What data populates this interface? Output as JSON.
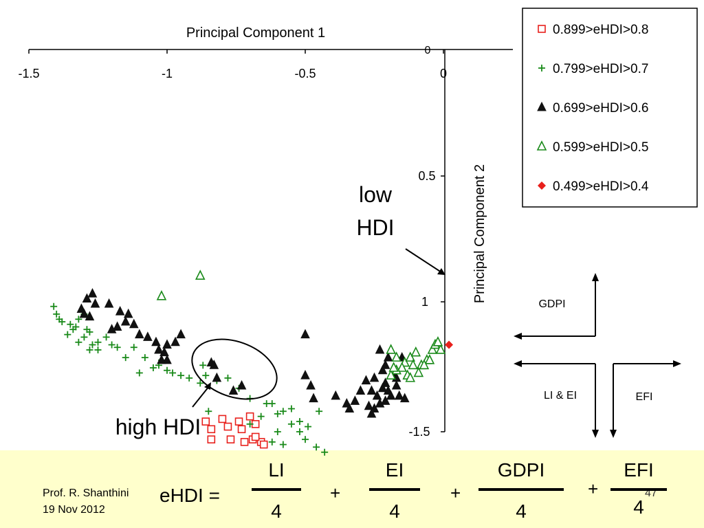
{
  "chart_data": {
    "type": "scatter",
    "xlabel": "Principal Component 1",
    "ylabel": "Principal Component 2",
    "x_ticks": [
      "-1.5",
      "-1",
      "-0.5",
      "0"
    ],
    "y_ticks": [
      "0",
      "0.5",
      "1",
      "-1.5"
    ],
    "x_axis_zero_label": "0",
    "legend_position": "top-right",
    "series": [
      {
        "name": "0.899>eHDI>0.8",
        "marker": "open-square",
        "color": "#e8201c",
        "points": [
          [
            -0.86,
            -1.46
          ],
          [
            -0.8,
            -1.45
          ],
          [
            -0.74,
            -1.46
          ],
          [
            -0.7,
            -1.44
          ],
          [
            -0.68,
            -1.47
          ],
          [
            -0.84,
            -1.49
          ],
          [
            -0.78,
            -1.48
          ],
          [
            -0.73,
            -1.49
          ],
          [
            -0.84,
            -1.53
          ],
          [
            -0.77,
            -1.53
          ],
          [
            -0.72,
            -1.54
          ],
          [
            -0.69,
            -1.53
          ],
          [
            -0.66,
            -1.54
          ],
          [
            -0.68,
            -1.52
          ],
          [
            -0.65,
            -1.55
          ]
        ]
      },
      {
        "name": "0.799>eHDI>0.7",
        "marker": "plus",
        "color": "#1a8a1a",
        "points": [
          [
            -1.41,
            -1.01
          ],
          [
            -1.4,
            -1.04
          ],
          [
            -1.39,
            -1.06
          ],
          [
            -1.38,
            -1.07
          ],
          [
            -1.35,
            -1.08
          ],
          [
            -1.33,
            -1.09
          ],
          [
            -1.34,
            -1.1
          ],
          [
            -1.32,
            -1.06
          ],
          [
            -1.3,
            -1.04
          ],
          [
            -1.29,
            -1.1
          ],
          [
            -1.28,
            -1.11
          ],
          [
            -1.3,
            -1.13
          ],
          [
            -1.27,
            -1.16
          ],
          [
            -1.25,
            -1.15
          ],
          [
            -1.22,
            -1.13
          ],
          [
            -1.2,
            -1.16
          ],
          [
            -1.18,
            -1.17
          ],
          [
            -1.28,
            -1.18
          ],
          [
            -1.25,
            -1.18
          ],
          [
            -1.15,
            -1.21
          ],
          [
            -1.12,
            -1.17
          ],
          [
            -1.08,
            -1.21
          ],
          [
            -1.02,
            -1.22
          ],
          [
            -1.03,
            -1.24
          ],
          [
            -1.0,
            -1.26
          ],
          [
            -0.98,
            -1.27
          ],
          [
            -0.95,
            -1.28
          ],
          [
            -0.92,
            -1.29
          ],
          [
            -0.87,
            -1.24
          ],
          [
            -0.82,
            -1.3
          ],
          [
            -0.78,
            -1.29
          ],
          [
            -0.86,
            -1.28
          ],
          [
            -0.88,
            -1.31
          ],
          [
            -0.74,
            -1.33
          ],
          [
            -0.7,
            -1.37
          ],
          [
            -0.64,
            -1.39
          ],
          [
            -0.6,
            -1.43
          ],
          [
            -0.58,
            -1.42
          ],
          [
            -0.55,
            -1.41
          ],
          [
            -0.52,
            -1.46
          ],
          [
            -0.6,
            -1.5
          ],
          [
            -0.62,
            -1.54
          ],
          [
            -0.58,
            -1.55
          ],
          [
            -0.52,
            -1.5
          ],
          [
            -0.49,
            -1.48
          ],
          [
            -0.5,
            -1.53
          ],
          [
            -0.46,
            -1.56
          ],
          [
            -0.43,
            -1.58
          ],
          [
            -0.45,
            -1.42
          ],
          [
            -0.62,
            -1.39
          ],
          [
            -1.36,
            -1.12
          ],
          [
            -1.32,
            -1.15
          ],
          [
            -1.05,
            -1.25
          ],
          [
            -1.1,
            -1.27
          ],
          [
            -0.7,
            -1.47
          ],
          [
            -0.66,
            -1.44
          ],
          [
            -0.85,
            -1.42
          ],
          [
            -0.55,
            -1.47
          ]
        ]
      },
      {
        "name": "0.699>eHDI>0.6",
        "marker": "filled-triangle",
        "color": "#111111",
        "points": [
          [
            -1.26,
            -1.0
          ],
          [
            -1.27,
            -0.96
          ],
          [
            -1.29,
            -0.98
          ],
          [
            -1.31,
            -1.02
          ],
          [
            -1.28,
            -1.05
          ],
          [
            -1.3,
            -1.04
          ],
          [
            -1.21,
            -1.0
          ],
          [
            -1.14,
            -1.04
          ],
          [
            -1.17,
            -1.03
          ],
          [
            -1.15,
            -1.07
          ],
          [
            -1.18,
            -1.09
          ],
          [
            -1.2,
            -1.1
          ],
          [
            -1.12,
            -1.08
          ],
          [
            -1.1,
            -1.12
          ],
          [
            -1.07,
            -1.13
          ],
          [
            -1.04,
            -1.15
          ],
          [
            -1.0,
            -1.16
          ],
          [
            -0.97,
            -1.15
          ],
          [
            -0.95,
            -1.12
          ],
          [
            -1.03,
            -1.18
          ],
          [
            -1.01,
            -1.19
          ],
          [
            -1.0,
            -1.22
          ],
          [
            -1.02,
            -1.22
          ],
          [
            -0.84,
            -1.23
          ],
          [
            -0.83,
            -1.24
          ],
          [
            -0.82,
            -1.29
          ],
          [
            -0.73,
            -1.32
          ],
          [
            -0.76,
            -1.34
          ],
          [
            -0.5,
            -1.12
          ],
          [
            -0.5,
            -1.28
          ],
          [
            -0.48,
            -1.32
          ],
          [
            -0.47,
            -1.37
          ],
          [
            -0.39,
            -1.36
          ],
          [
            -0.35,
            -1.39
          ],
          [
            -0.34,
            -1.41
          ],
          [
            -0.32,
            -1.38
          ],
          [
            -0.3,
            -1.34
          ],
          [
            -0.28,
            -1.3
          ],
          [
            -0.27,
            -1.4
          ],
          [
            -0.26,
            -1.43
          ],
          [
            -0.25,
            -1.41
          ],
          [
            -0.23,
            -1.39
          ],
          [
            -0.22,
            -1.33
          ],
          [
            -0.21,
            -1.31
          ],
          [
            -0.2,
            -1.34
          ],
          [
            -0.22,
            -1.26
          ],
          [
            -0.21,
            -1.24
          ],
          [
            -0.19,
            -1.28
          ],
          [
            -0.2,
            -1.21
          ],
          [
            -0.23,
            -1.18
          ],
          [
            -0.17,
            -1.32
          ],
          [
            -0.18,
            -1.28
          ],
          [
            -0.16,
            -1.36
          ],
          [
            -0.19,
            -1.36
          ],
          [
            -0.21,
            -1.38
          ],
          [
            -0.24,
            -1.36
          ],
          [
            -0.26,
            -1.34
          ],
          [
            -0.14,
            -1.37
          ],
          [
            -0.17,
            -1.29
          ],
          [
            -0.15,
            -1.21
          ],
          [
            -0.25,
            -1.29
          ]
        ]
      },
      {
        "name": "0.599>eHDI>0.5",
        "marker": "open-triangle",
        "color": "#1a8a1a",
        "points": [
          [
            -0.88,
            -0.89
          ],
          [
            -1.02,
            -0.97
          ],
          [
            -0.19,
            -1.18
          ],
          [
            -0.17,
            -1.21
          ],
          [
            -0.14,
            -1.23
          ],
          [
            -0.12,
            -1.21
          ],
          [
            -0.1,
            -1.19
          ],
          [
            -0.08,
            -1.24
          ],
          [
            -0.06,
            -1.22
          ],
          [
            -0.04,
            -1.18
          ],
          [
            -0.03,
            -1.16
          ],
          [
            -0.01,
            -1.18
          ],
          [
            -0.05,
            -1.22
          ],
          [
            -0.07,
            -1.24
          ],
          [
            -0.11,
            -1.24
          ],
          [
            -0.15,
            -1.25
          ],
          [
            -0.13,
            -1.28
          ],
          [
            -0.17,
            -1.26
          ],
          [
            -0.19,
            -1.28
          ],
          [
            -0.02,
            -1.15
          ],
          [
            -0.09,
            -1.27
          ],
          [
            -0.18,
            -1.25
          ],
          [
            -0.12,
            -1.29
          ]
        ]
      },
      {
        "name": "0.499>eHDI>0.4",
        "marker": "filled-diamond",
        "color": "#e8201c",
        "points": [
          [
            0.02,
            -1.16
          ]
        ]
      }
    ]
  },
  "annotations": {
    "low_hdi": "low\nHDI",
    "high_hdi": "high HDI"
  },
  "compass": {
    "gdpi": "GDPI",
    "li_ei": "LI & EI",
    "efi": "EFI"
  },
  "formula": {
    "lhs": "eHDI =",
    "terms": [
      {
        "num": "LI",
        "den": "4"
      },
      {
        "num": "EI",
        "den": "4"
      },
      {
        "num": "GDPI",
        "den": "4"
      },
      {
        "num": "EFI",
        "den": "4"
      }
    ],
    "plus": "+"
  },
  "footer": {
    "author": "Prof. R. Shanthini",
    "date": "19 Nov 2012",
    "page": "47"
  }
}
